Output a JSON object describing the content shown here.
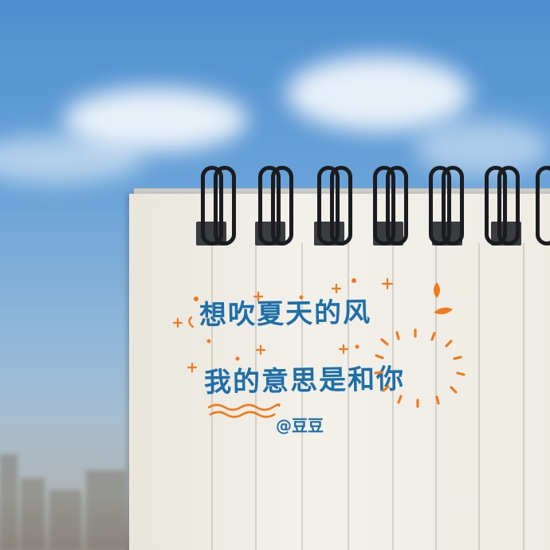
{
  "photo": {
    "subject": "spiral notebook against blue sky",
    "handwriting": {
      "line1": "想吹夏天的风",
      "line2": "我的意思是和你",
      "signature": "@豆豆"
    },
    "colors": {
      "ink_blue": "#1e6fa8",
      "ink_orange": "#f07a1e",
      "sky": "#5f9ad4",
      "paper": "#f0ede5"
    },
    "decorations": [
      "plus-sparkle-icon",
      "dot-icon",
      "sun-burst-icon",
      "wavy-underline-icon"
    ]
  }
}
